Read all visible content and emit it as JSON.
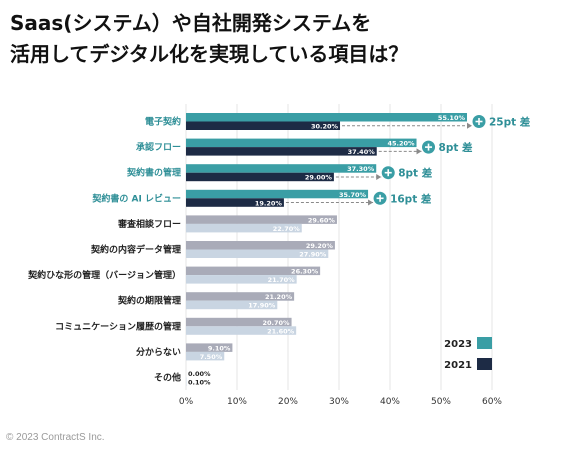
{
  "title_lines": [
    "Saas(システム）や自社開発システムを",
    "活用してデジタル化を実現している項目は？"
  ],
  "copyright": "© 2023 ContractS Inc.",
  "colors": {
    "series_2023": "#3a9ea5",
    "series_2021": "#1d2b45",
    "other_2023": "#a9abb8",
    "other_2021": "#c9d5e2",
    "highlight_label": "#2f8f97",
    "diff_arrow": "#8a8a8a"
  },
  "chart_data": {
    "type": "bar",
    "orientation": "horizontal",
    "categories": [
      "電子契約",
      "承認フロー",
      "契約書の管理",
      "契約書の AI レビュー",
      "審査相談フロー",
      "契約の内容データ管理",
      "契約ひな形の管理（バージョン管理）",
      "契約の期限管理",
      "コミュニケーション履歴の管理",
      "分からない",
      "その他"
    ],
    "series": [
      {
        "name": "2023",
        "values": [
          55.1,
          45.2,
          37.3,
          35.7,
          29.6,
          29.2,
          26.3,
          21.2,
          20.7,
          9.1,
          0.0
        ]
      },
      {
        "name": "2021",
        "values": [
          30.2,
          37.4,
          29.0,
          19.2,
          22.7,
          27.9,
          21.7,
          17.9,
          21.6,
          7.5,
          0.1
        ]
      }
    ],
    "value_labels": {
      "2023": [
        "55.10%",
        "45.20%",
        "37.30%",
        "35.70%",
        "29.60%",
        "29.20%",
        "26.30%",
        "21.20%",
        "20.70%",
        "9.10%",
        "0.00%"
      ],
      "2021": [
        "30.20%",
        "37.40%",
        "29.00%",
        "19.20%",
        "22.70%",
        "27.90%",
        "21.70%",
        "17.90%",
        "21.60%",
        "7.50%",
        "0.10%"
      ]
    },
    "highlight_count": 4,
    "differences": [
      "25pt 差",
      "8pt 差",
      "8pt 差",
      "16pt 差"
    ],
    "x_ticks": [
      "0%",
      "10%",
      "20%",
      "30%",
      "40%",
      "50%",
      "60%"
    ],
    "xlim": [
      0,
      60
    ],
    "grid": true,
    "legend": {
      "position": "bottom-right",
      "entries": [
        "2023",
        "2021"
      ]
    }
  }
}
